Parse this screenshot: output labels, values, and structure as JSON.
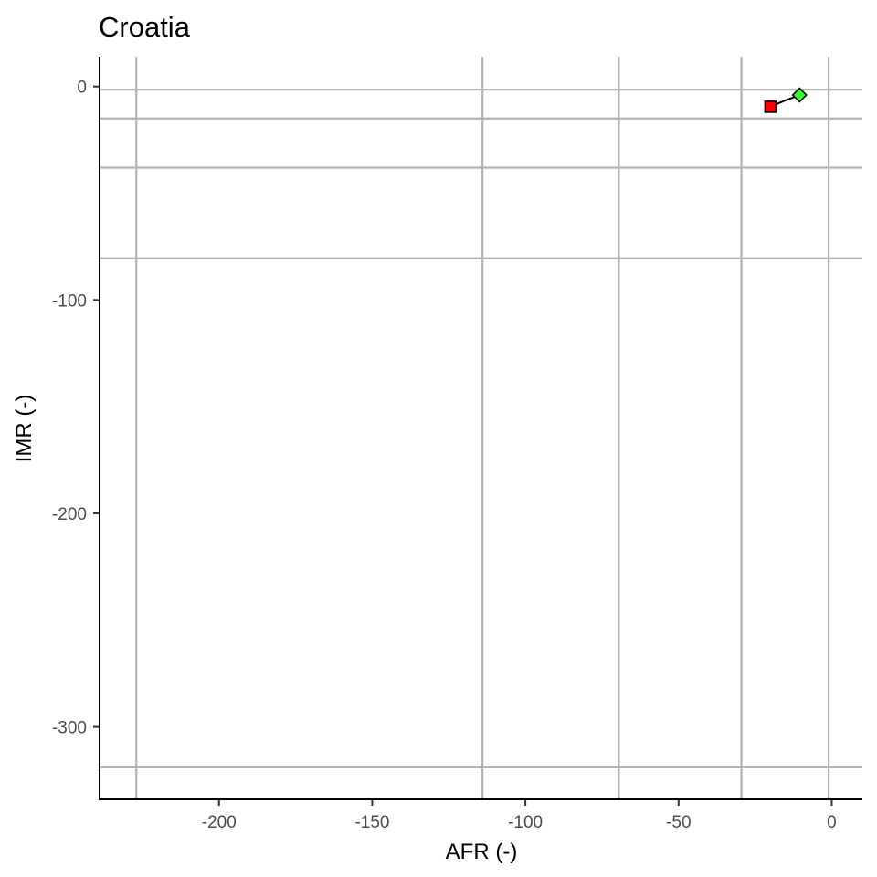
{
  "chart_data": {
    "type": "line",
    "title": "Croatia",
    "xlabel": "AFR (-)",
    "ylabel": "IMR (-)",
    "xlim": [
      -239,
      10
    ],
    "ylim": [
      -334,
      14
    ],
    "x_ticks": [
      -200,
      -150,
      -100,
      -50,
      0
    ],
    "y_ticks": [
      0,
      -100,
      -200,
      -300
    ],
    "vertical_ref_lines": [
      -227,
      -114,
      -69.5,
      -29.5,
      -1
    ],
    "horizontal_ref_lines": [
      -1.5,
      -15,
      -38,
      -80.5,
      -319
    ],
    "series": [
      {
        "x": [
          -20,
          -16,
          -10.5
        ],
        "y": [
          -9.5,
          -7,
          -4
        ],
        "start_marker": {
          "shape": "square",
          "color": "#ff0000"
        },
        "end_marker": {
          "shape": "diamond",
          "color": "#33ff33"
        }
      }
    ],
    "grid": false,
    "legend": "none"
  }
}
